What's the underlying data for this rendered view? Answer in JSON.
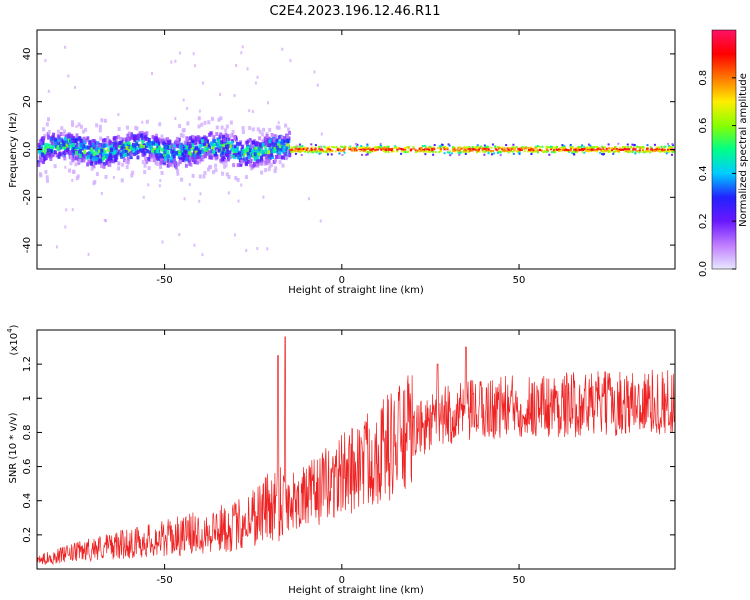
{
  "title": "C2E4.2023.196.12.46.R11",
  "chart_data": [
    {
      "type": "heatmap",
      "xlabel": "Height of straight line (km)",
      "ylabel": "Frequency (Hz)",
      "xlim": [
        -86,
        94
      ],
      "ylim": [
        -50,
        50
      ],
      "xticks": [
        -50,
        0,
        50
      ],
      "yticks": [
        -40,
        -20,
        0,
        20,
        40
      ],
      "colorbar": {
        "label": "Normalized spectral amplitude",
        "range": [
          0,
          1
        ],
        "ticks": [
          0.0,
          0.2,
          0.4,
          0.6,
          0.8
        ],
        "stops": [
          "#e8e8ff",
          "#c07cff",
          "#6a18ff",
          "#2222ff",
          "#00ccff",
          "#00ff88",
          "#88ff00",
          "#ffee00",
          "#ff7700",
          "#ff0000",
          "#ff1166"
        ]
      },
      "ridge": {
        "description": "broad noisy band around 0 Hz below ~-15 km, narrow stable line near 0 Hz above",
        "noisy_x_range": [
          -86,
          -15
        ],
        "stable_x_range": [
          -15,
          94
        ],
        "noisy_halfwidth_hz": 5,
        "stable_halfwidth_hz": 1.2
      }
    },
    {
      "type": "line",
      "xlabel": "Height of straight line (km)",
      "ylabel": "SNR (10 * v/v)",
      "y_multiplier": "(x10",
      "y_multiplier_exp": "4",
      "y_multiplier_close": ")",
      "xlim": [
        -86,
        94
      ],
      "ylim": [
        0,
        1.4
      ],
      "xticks": [
        -50,
        0,
        50
      ],
      "yticks": [
        0.2,
        0.4,
        0.6,
        0.8,
        1.0,
        1.2
      ],
      "color": "#ee2222",
      "trend": [
        {
          "x": -86,
          "y": 0.05
        },
        {
          "x": -70,
          "y": 0.12
        },
        {
          "x": -50,
          "y": 0.18
        },
        {
          "x": -30,
          "y": 0.25
        },
        {
          "x": -18,
          "y": 0.4
        },
        {
          "x": -10,
          "y": 0.42
        },
        {
          "x": 0,
          "y": 0.55
        },
        {
          "x": 10,
          "y": 0.68
        },
        {
          "x": 20,
          "y": 0.8
        },
        {
          "x": 30,
          "y": 0.9
        },
        {
          "x": 45,
          "y": 0.95
        },
        {
          "x": 60,
          "y": 0.96
        },
        {
          "x": 94,
          "y": 0.98
        }
      ],
      "peaks": [
        {
          "x": -16,
          "y": 1.36
        },
        {
          "x": -18,
          "y": 1.25
        },
        {
          "x": 35,
          "y": 1.3
        },
        {
          "x": 27,
          "y": 1.2
        }
      ]
    }
  ]
}
